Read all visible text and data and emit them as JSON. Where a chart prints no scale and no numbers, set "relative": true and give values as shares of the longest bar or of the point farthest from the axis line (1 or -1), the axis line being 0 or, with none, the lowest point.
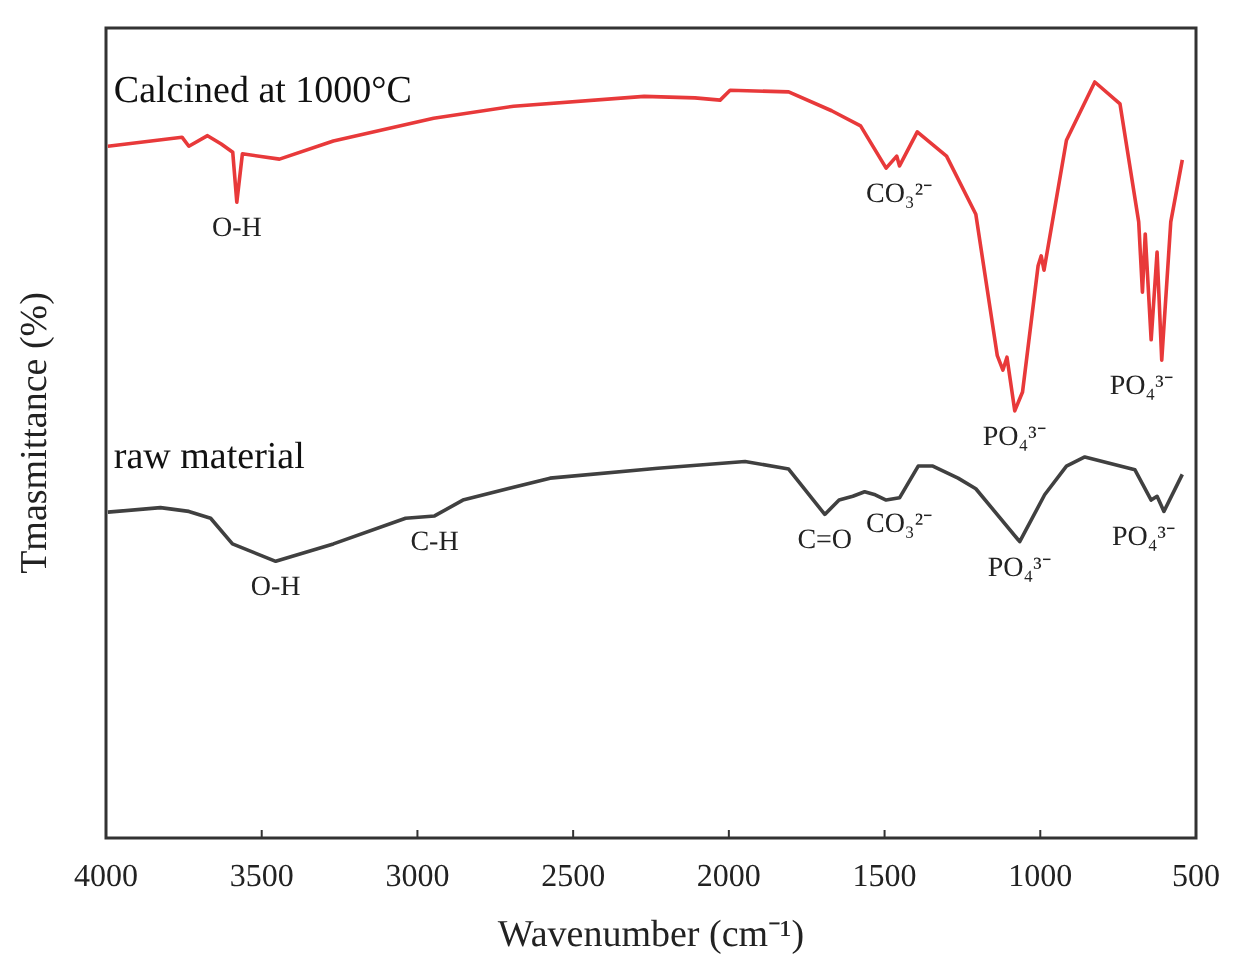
{
  "chart_data": {
    "type": "line",
    "relative": true,
    "xlabel": "Wavenumber (cm⁻¹)",
    "ylabel": "Tmasmittance (%)",
    "xlim": [
      4000,
      500
    ],
    "xticks": [
      4000,
      3500,
      3000,
      2500,
      2000,
      1500,
      1000,
      500
    ],
    "tick_labels": "x",
    "grid": false,
    "line_style": "solid",
    "marker": "none",
    "series": [
      {
        "name": "Calcined at 1000°C",
        "color": "#e8393a",
        "x": [
          3994,
          3756,
          3734,
          3674,
          3630,
          3593,
          3580,
          3562,
          3443,
          3270,
          2948,
          2691,
          2272,
          2109,
          2028,
          1996,
          1808,
          1670,
          1577,
          1495,
          1461,
          1452,
          1395,
          1301,
          1207,
          1138,
          1120,
          1107,
          1082,
          1057,
          1007,
          997,
          988,
          916,
          825,
          744,
          684,
          672,
          663,
          644,
          625,
          610,
          581,
          544
        ],
        "values": [
          0.915,
          0.927,
          0.915,
          0.929,
          0.918,
          0.907,
          0.841,
          0.905,
          0.898,
          0.922,
          0.952,
          0.968,
          0.981,
          0.979,
          0.976,
          0.989,
          0.987,
          0.962,
          0.942,
          0.886,
          0.902,
          0.889,
          0.934,
          0.902,
          0.825,
          0.638,
          0.619,
          0.636,
          0.565,
          0.59,
          0.757,
          0.77,
          0.751,
          0.923,
          1,
          0.971,
          0.815,
          0.722,
          0.799,
          0.659,
          0.775,
          0.632,
          0.815,
          0.897
        ]
      },
      {
        "name": "raw material",
        "color": "#404040",
        "x": [
          3994,
          3825,
          3734,
          3664,
          3594,
          3455,
          3270,
          3038,
          2945,
          2854,
          2574,
          2228,
          1948,
          1808,
          1692,
          1646,
          1602,
          1564,
          1530,
          1495,
          1452,
          1392,
          1345,
          1264,
          1207,
          1066,
          986,
          916,
          857,
          696,
          644,
          625,
          603,
          544
        ],
        "values": [
          0.431,
          0.437,
          0.432,
          0.423,
          0.389,
          0.366,
          0.389,
          0.423,
          0.426,
          0.447,
          0.476,
          0.489,
          0.498,
          0.488,
          0.428,
          0.447,
          0.452,
          0.458,
          0.454,
          0.447,
          0.45,
          0.492,
          0.492,
          0.476,
          0.462,
          0.392,
          0.454,
          0.492,
          0.504,
          0.487,
          0.447,
          0.452,
          0.432,
          0.481
        ]
      }
    ],
    "annotations": [
      {
        "text": "O-H",
        "x": 3580,
        "y": 0.841
      },
      {
        "text": "CO₃²⁻",
        "x": 1452,
        "y": 0.886
      },
      {
        "text": "PO₄³⁻",
        "x": 1082,
        "y": 0.565
      },
      {
        "text": "PO₄³⁻",
        "x": 610,
        "y": 0.632
      },
      {
        "text": "O-H",
        "x": 3455,
        "y": 0.366
      },
      {
        "text": "C-H",
        "x": 2945,
        "y": 0.426
      },
      {
        "text": "C=O",
        "x": 1692,
        "y": 0.428
      },
      {
        "text": "CO₃²⁻",
        "x": 1452,
        "y": 0.45
      },
      {
        "text": "PO₄³⁻",
        "x": 1066,
        "y": 0.392
      },
      {
        "text": "PO₄³⁻",
        "x": 603,
        "y": 0.432
      }
    ]
  }
}
